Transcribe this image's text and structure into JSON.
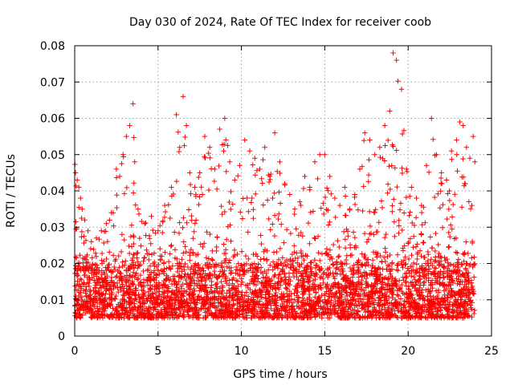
{
  "chart_data": {
    "type": "scatter",
    "title": "Day 030 of 2024, Rate Of TEC Index for receiver coob",
    "xlabel": "GPS time / hours",
    "ylabel": "ROTI / TECUs",
    "xlim": [
      0,
      25
    ],
    "ylim": [
      0,
      0.08
    ],
    "x_ticks": [
      "0",
      "5",
      "10",
      "15",
      "20",
      "25"
    ],
    "y_ticks": [
      "0",
      "0.01",
      "0.02",
      "0.03",
      "0.04",
      "0.05",
      "0.06",
      "0.07",
      "0.08"
    ],
    "grid": true,
    "marker": "+",
    "series_color": "#ff0000",
    "series": [
      {
        "name": "ROTI",
        "x": [
          0.05,
          0.15,
          0.25,
          0.35,
          0.45,
          0.6,
          0.8,
          1.0,
          1.3,
          1.6,
          1.9,
          2.2,
          2.5,
          2.7,
          2.9,
          3.1,
          3.3,
          3.5,
          3.6,
          3.8,
          4.2,
          4.6,
          5.0,
          5.4,
          5.8,
          6.1,
          6.3,
          6.5,
          6.7,
          6.9,
          7.2,
          7.5,
          7.8,
          8.1,
          8.4,
          8.7,
          9.0,
          9.3,
          9.6,
          9.9,
          10.2,
          10.5,
          10.8,
          11.1,
          11.4,
          11.7,
          12.0,
          12.3,
          12.6,
          12.9,
          13.2,
          13.5,
          13.8,
          14.1,
          14.4,
          14.7,
          15.0,
          15.3,
          15.6,
          15.9,
          16.2,
          16.5,
          16.8,
          17.1,
          17.4,
          17.7,
          18.0,
          18.3,
          18.6,
          18.9,
          19.1,
          19.3,
          19.6,
          19.9,
          20.2,
          20.5,
          20.8,
          21.1,
          21.4,
          21.7,
          22.0,
          22.3,
          22.6,
          22.9,
          23.1,
          23.3,
          23.5,
          23.7,
          23.9,
          24.0
        ],
        "y": [
          0.045,
          0.043,
          0.041,
          0.038,
          0.035,
          0.032,
          0.029,
          0.026,
          0.027,
          0.029,
          0.031,
          0.034,
          0.046,
          0.044,
          0.05,
          0.055,
          0.058,
          0.064,
          0.048,
          0.035,
          0.031,
          0.033,
          0.029,
          0.036,
          0.041,
          0.061,
          0.052,
          0.066,
          0.058,
          0.045,
          0.041,
          0.045,
          0.055,
          0.052,
          0.046,
          0.057,
          0.06,
          0.048,
          0.043,
          0.047,
          0.054,
          0.051,
          0.049,
          0.046,
          0.052,
          0.044,
          0.056,
          0.048,
          0.042,
          0.039,
          0.035,
          0.037,
          0.044,
          0.041,
          0.048,
          0.05,
          0.05,
          0.044,
          0.038,
          0.036,
          0.041,
          0.035,
          0.039,
          0.046,
          0.056,
          0.054,
          0.05,
          0.052,
          0.058,
          0.062,
          0.078,
          0.076,
          0.068,
          0.046,
          0.041,
          0.038,
          0.036,
          0.047,
          0.06,
          0.05,
          0.045,
          0.043,
          0.051,
          0.054,
          0.059,
          0.058,
          0.052,
          0.049,
          0.055,
          0.048
        ],
        "baseline_band": [
          0.005,
          0.02
        ]
      }
    ]
  }
}
